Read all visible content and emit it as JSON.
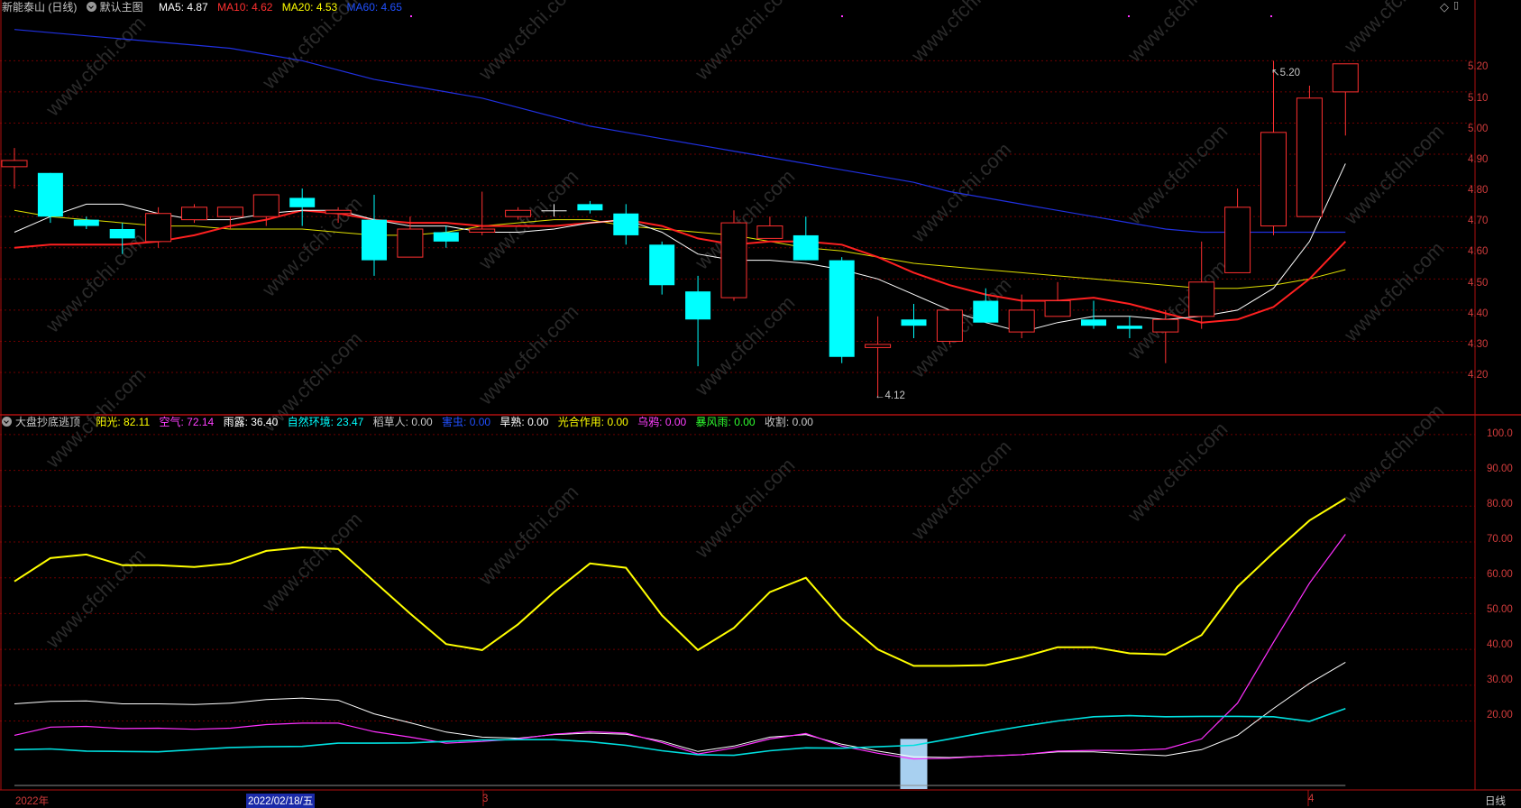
{
  "header": {
    "stock": "新能泰山 (日线)",
    "template": "默认主图",
    "ma": [
      {
        "label": "MA5: 4.87",
        "color": "#ffffff"
      },
      {
        "label": "MA10: 4.62",
        "color": "#ff3030"
      },
      {
        "label": "MA20: 4.53",
        "color": "#ffff00"
      },
      {
        "label": "MA60: 4.65",
        "color": "#2050ff"
      }
    ]
  },
  "indicator": {
    "name": "大盘抄底逃顶",
    "items": [
      {
        "label": "阳光: 82.11",
        "color": "#ffff00"
      },
      {
        "label": "空气: 72.14",
        "color": "#ff40ff"
      },
      {
        "label": "雨露: 36.40",
        "color": "#ffffff"
      },
      {
        "label": "自然环境: 23.47",
        "color": "#00ffff"
      },
      {
        "label": "稻草人: 0.00",
        "color": "#c8c8c8"
      },
      {
        "label": "害虫: 0.00",
        "color": "#2050ff"
      },
      {
        "label": "旱熟: 0.00",
        "color": "#ffffff"
      },
      {
        "label": "光合作用: 0.00",
        "color": "#ffff00"
      },
      {
        "label": "乌鸦: 0.00",
        "color": "#ff40ff"
      },
      {
        "label": "暴风雨: 0.00",
        "color": "#30ff30"
      },
      {
        "label": "收割: 0.00",
        "color": "#c8c8c8"
      }
    ]
  },
  "price_axis": [
    "5.20",
    "5.10",
    "5.00",
    "4.90",
    "4.80",
    "4.70",
    "4.60",
    "4.50",
    "4.40",
    "4.30",
    "4.20"
  ],
  "ind_axis": [
    "100.0",
    "90.00",
    "80.00",
    "70.00",
    "60.00",
    "50.00",
    "40.00",
    "30.00",
    "20.00"
  ],
  "annotations": {
    "high": "5.20",
    "low": "4.12"
  },
  "dates": {
    "start": "2022年",
    "cursor": "2022/02/18/五",
    "m3": "3",
    "m4": "4",
    "period": "日线"
  },
  "watermark": "www.cfchi.com",
  "colors": {
    "up": "#ff3030",
    "down": "#00ffff",
    "grid": "#6e0000",
    "border": "#b01010",
    "axis_text": "#d23c3c"
  },
  "chart_data": {
    "type": "candlestick",
    "candles": [
      [
        4.86,
        4.88,
        4.92,
        4.79
      ],
      [
        4.84,
        4.7,
        4.84,
        4.68
      ],
      [
        4.69,
        4.67,
        4.7,
        4.66
      ],
      [
        4.66,
        4.63,
        4.68,
        4.58
      ],
      [
        4.62,
        4.71,
        4.73,
        4.6
      ],
      [
        4.69,
        4.73,
        4.74,
        4.68
      ],
      [
        4.7,
        4.73,
        4.73,
        4.66
      ],
      [
        4.7,
        4.77,
        4.77,
        4.67
      ],
      [
        4.76,
        4.73,
        4.79,
        4.67
      ],
      [
        4.71,
        4.72,
        4.73,
        4.68
      ],
      [
        4.69,
        4.56,
        4.77,
        4.51
      ],
      [
        4.57,
        4.66,
        4.7,
        4.57
      ],
      [
        4.65,
        4.62,
        4.67,
        4.6
      ],
      [
        4.65,
        4.66,
        4.78,
        4.64
      ],
      [
        4.7,
        4.72,
        4.73,
        4.69
      ],
      [
        4.72,
        4.72,
        4.74,
        4.7
      ],
      [
        4.74,
        4.72,
        4.75,
        4.71
      ],
      [
        4.71,
        4.64,
        4.74,
        4.61
      ],
      [
        4.61,
        4.48,
        4.62,
        4.45
      ],
      [
        4.46,
        4.37,
        4.51,
        4.22
      ],
      [
        4.44,
        4.68,
        4.72,
        4.43
      ],
      [
        4.63,
        4.67,
        4.7,
        4.63
      ],
      [
        4.64,
        4.56,
        4.7,
        4.56
      ],
      [
        4.56,
        4.25,
        4.57,
        4.23
      ],
      [
        4.28,
        4.29,
        4.38,
        4.12
      ],
      [
        4.37,
        4.35,
        4.42,
        4.31
      ],
      [
        4.3,
        4.4,
        4.4,
        4.29
      ],
      [
        4.43,
        4.36,
        4.47,
        4.36
      ],
      [
        4.33,
        4.4,
        4.45,
        4.31
      ],
      [
        4.38,
        4.43,
        4.49,
        4.38
      ],
      [
        4.37,
        4.35,
        4.43,
        4.34
      ],
      [
        4.35,
        4.34,
        4.38,
        4.31
      ],
      [
        4.33,
        4.37,
        4.4,
        4.23
      ],
      [
        4.38,
        4.49,
        4.62,
        4.34
      ],
      [
        4.52,
        4.73,
        4.79,
        4.52
      ],
      [
        4.67,
        4.97,
        5.2,
        4.64
      ],
      [
        4.7,
        5.08,
        5.12,
        4.7
      ],
      [
        5.1,
        5.19,
        5.19,
        4.96
      ]
    ],
    "ma5": [
      4.65,
      4.7,
      4.74,
      4.74,
      4.71,
      4.69,
      4.69,
      4.71,
      4.72,
      4.72,
      4.69,
      4.67,
      4.67,
      4.65,
      4.65,
      4.66,
      4.68,
      4.69,
      4.65,
      4.58,
      4.56,
      4.56,
      4.55,
      4.53,
      4.5,
      4.45,
      4.4,
      4.36,
      4.33,
      4.36,
      4.38,
      4.38,
      4.37,
      4.38,
      4.4,
      4.47,
      4.62,
      4.87
    ],
    "ma10": [
      4.6,
      4.61,
      4.61,
      4.61,
      4.62,
      4.64,
      4.67,
      4.69,
      4.72,
      4.71,
      4.69,
      4.68,
      4.68,
      4.67,
      4.67,
      4.67,
      4.68,
      4.69,
      4.67,
      4.63,
      4.61,
      4.62,
      4.62,
      4.61,
      4.57,
      4.52,
      4.48,
      4.45,
      4.43,
      4.43,
      4.44,
      4.42,
      4.39,
      4.36,
      4.37,
      4.41,
      4.5,
      4.62
    ],
    "ma20": [
      4.72,
      4.7,
      4.69,
      4.68,
      4.67,
      4.67,
      4.66,
      4.66,
      4.66,
      4.65,
      4.64,
      4.64,
      4.65,
      4.67,
      4.68,
      4.69,
      4.69,
      4.67,
      4.66,
      4.65,
      4.64,
      4.62,
      4.6,
      4.59,
      4.57,
      4.55,
      4.54,
      4.53,
      4.52,
      4.51,
      4.5,
      4.49,
      4.48,
      4.47,
      4.47,
      4.48,
      4.5,
      4.53
    ],
    "ma60": [
      5.3,
      5.29,
      5.28,
      5.27,
      5.26,
      5.25,
      5.24,
      5.22,
      5.2,
      5.17,
      5.14,
      5.12,
      5.1,
      5.08,
      5.05,
      5.02,
      4.99,
      4.97,
      4.95,
      4.93,
      4.91,
      4.89,
      4.87,
      4.85,
      4.83,
      4.81,
      4.78,
      4.76,
      4.74,
      4.72,
      4.7,
      4.68,
      4.66,
      4.65,
      4.65,
      4.65,
      4.65,
      4.65
    ],
    "price_range": [
      4.07,
      5.36
    ],
    "indicator_range": [
      2,
      104
    ],
    "yangguang": [
      59,
      65.5,
      66.5,
      63.5,
      63.5,
      63,
      64,
      67.5,
      68.5,
      68,
      59,
      50,
      41.5,
      39.8,
      47,
      56,
      64,
      62.8,
      49.5,
      39.8,
      46,
      56,
      60,
      48.5,
      40,
      35.4,
      35.4,
      35.6,
      37.8,
      40.6,
      40.6,
      38.9,
      38.6,
      44,
      57.5,
      67,
      76,
      82.11
    ],
    "kongqi": [
      16,
      18.3,
      18.5,
      17.9,
      18,
      17.7,
      18,
      19,
      19.4,
      19.4,
      17,
      15.5,
      13.8,
      14.3,
      15,
      16.3,
      17,
      16.6,
      14,
      10.8,
      12.5,
      15,
      16.5,
      13,
      11,
      9.4,
      9.6,
      10.2,
      10.6,
      11.6,
      11.8,
      11.8,
      12.2,
      15,
      25,
      42,
      58.5,
      72.14
    ],
    "yulu": [
      24.8,
      25.5,
      25.6,
      24.8,
      24.8,
      24.6,
      25,
      26,
      26.4,
      25.8,
      22,
      19.5,
      16.9,
      15.5,
      15.2,
      16.2,
      16.6,
      16.3,
      14.4,
      11.5,
      13,
      15.5,
      16.2,
      13.5,
      11.6,
      10,
      9.8,
      10.2,
      10.6,
      11.4,
      11.4,
      10.8,
      10.3,
      12,
      16,
      23.5,
      30.5,
      36.4
    ],
    "ziran": [
      12,
      12.2,
      11.6,
      11.5,
      11.4,
      12,
      12.6,
      12.8,
      12.9,
      13.8,
      13.8,
      13.9,
      14.3,
      14.7,
      14.8,
      14.8,
      14.2,
      13.2,
      11.7,
      10.6,
      10.4,
      11.7,
      12.5,
      12.4,
      12.8,
      13.2,
      15,
      16.8,
      18.5,
      20,
      21.2,
      21.5,
      21.2,
      21.3,
      21.3,
      21.2,
      19.9,
      23.47
    ],
    "haichong_bar": {
      "index": 25,
      "value": 15
    }
  }
}
